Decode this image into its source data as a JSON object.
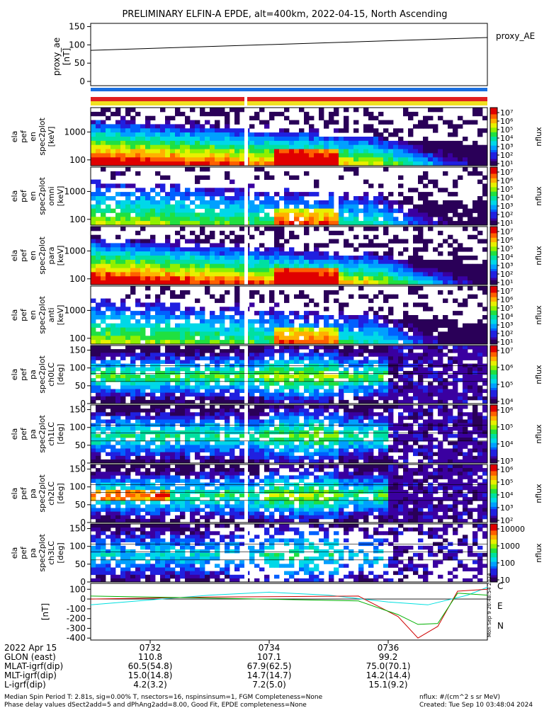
{
  "title": "PRELIMINARY ELFIN-A EPDE, alt=400km, 2022-04-15, North Ascending",
  "colors": {
    "axis": "#000000",
    "bar_blue": "#1a6fe0",
    "bar_red": "#e02020",
    "bar_yellow": "#f0e020",
    "white_gap": "#ffffff",
    "bx_cyan": "#00e0e0",
    "by_red": "#d00000",
    "bz_green": "#00b000"
  },
  "proxy_panel": {
    "ylabel": "proxy_ae\n[nT]",
    "yticks": [
      "150",
      "100",
      "50",
      "0"
    ],
    "legend": "proxy_AE"
  },
  "spec_panels": [
    {
      "ylabel": [
        "ela",
        "pef",
        "en",
        "spec2plot",
        "[keV]"
      ],
      "yticks": [
        "1000",
        "100"
      ],
      "cbar_ticks": [
        "10⁷",
        "10⁶",
        "10⁵",
        "10⁴",
        "10³",
        "10²",
        "10¹"
      ],
      "cbar_label": "nflux"
    },
    {
      "ylabel": [
        "ela",
        "pef",
        "en",
        "spec2plot",
        "omni",
        "[keV]"
      ],
      "yticks": [
        "1000",
        "100"
      ],
      "cbar_ticks": [
        "10⁷",
        "10⁶",
        "10⁵",
        "10⁴",
        "10³",
        "10²",
        "10¹"
      ],
      "cbar_label": "nflux"
    },
    {
      "ylabel": [
        "ela",
        "pef",
        "en",
        "spec2plot",
        "para",
        "[keV]"
      ],
      "yticks": [
        "1000",
        "100"
      ],
      "cbar_ticks": [
        "10⁷",
        "10⁶",
        "10⁵",
        "10⁴",
        "10³",
        "10²",
        "10¹"
      ],
      "cbar_label": "nflux"
    },
    {
      "ylabel": [
        "ela",
        "pef",
        "en",
        "spec2plot",
        "anti",
        "[keV]"
      ],
      "yticks": [
        "1000",
        "100"
      ],
      "cbar_ticks": [
        "10⁷",
        "10⁶",
        "10⁵",
        "10⁴",
        "10³",
        "10²",
        "10¹"
      ],
      "cbar_label": "nflux"
    },
    {
      "ylabel": [
        "ela",
        "pef",
        "pa",
        "spec2plot",
        "ch0LC",
        "[deg]"
      ],
      "yticks": [
        "150",
        "100",
        "50",
        "0"
      ],
      "cbar_ticks": [
        "10⁷",
        "10⁶",
        "10⁵",
        "10⁴"
      ],
      "cbar_label": "nflux"
    },
    {
      "ylabel": [
        "ela",
        "pef",
        "pa",
        "spec2plot",
        "ch1LC",
        "[deg]"
      ],
      "yticks": [
        "150",
        "100",
        "50",
        "0"
      ],
      "cbar_ticks": [
        "10⁶",
        "10⁵",
        "10⁴",
        "10³"
      ],
      "cbar_label": "nflux"
    },
    {
      "ylabel": [
        "ela",
        "pef",
        "pa",
        "spec2plot",
        "ch2LC",
        "[deg]"
      ],
      "yticks": [
        "150",
        "100",
        "50",
        "0"
      ],
      "cbar_ticks": [
        "10⁶",
        "10⁵",
        "10⁴",
        "10³",
        "10²"
      ],
      "cbar_label": "nflux"
    },
    {
      "ylabel": [
        "ela",
        "pef",
        "pa",
        "spec2plot",
        "ch3LC",
        "[deg]"
      ],
      "yticks": [
        "150",
        "100",
        "50",
        "0"
      ],
      "cbar_ticks": [
        "10000",
        "1000",
        "100",
        "10"
      ],
      "cbar_label": "nflux"
    }
  ],
  "mag_panel": {
    "ylabel": "[nT]",
    "yticks": [
      "100",
      "0",
      "-100",
      "-200",
      "-300",
      "-400"
    ],
    "legend": [
      "C",
      "E",
      "N"
    ],
    "stamp": "Mon Sep 9 20:48:54 2024"
  },
  "axis_labels": {
    "rows": [
      "2022 Apr 15",
      "GLON (east)",
      "MLAT-igrf(dip)",
      "MLT-igrf(dip)",
      "L-igrf(dip)"
    ],
    "cols": [
      [
        "0732",
        "110.8",
        "60.5(54.8)",
        "15.0(14.8)",
        "4.2(3.2)"
      ],
      [
        "0734",
        "107.1",
        "67.9(62.5)",
        "14.7(14.7)",
        "7.2(5.0)"
      ],
      [
        "0736",
        "99.2",
        "75.0(70.1)",
        "14.2(14.4)",
        "15.1(9.2)"
      ]
    ]
  },
  "footer": {
    "line1": "Median Spin Period T: 2.81s, sig=0.00% T, nsectors=16, nspinsinsum=1, FGM Completeness=None",
    "line2": "Phase delay values dSect2add=5 and dPhAng2add=8.00, Good Fit, EPDE completeness=None",
    "right1": "nflux: #/(cm^2 s sr MeV)",
    "right2": "Created: Tue Sep 10 03:48:04 2024"
  },
  "chart_data": {
    "type": "line",
    "series": [
      {
        "name": "proxy_AE",
        "x": [
          "07:31:00",
          "07:37:40"
        ],
        "values": [
          85,
          120
        ]
      }
    ],
    "mag_series": [
      {
        "name": "C",
        "x": [
          "07:31:00",
          "07:32:00",
          "07:33:00",
          "07:34:00",
          "07:35:00",
          "07:36:00",
          "07:36:40",
          "07:37:20",
          "07:37:40"
        ],
        "values": [
          -60,
          -10,
          40,
          70,
          40,
          -30,
          -60,
          40,
          120
        ]
      },
      {
        "name": "E",
        "x": [
          "07:31:00",
          "07:33:00",
          "07:35:30",
          "07:36:10",
          "07:36:30",
          "07:36:50",
          "07:37:10",
          "07:37:40"
        ],
        "values": [
          0,
          20,
          30,
          -180,
          -400,
          -280,
          80,
          100
        ]
      },
      {
        "name": "N",
        "x": [
          "07:31:00",
          "07:33:00",
          "07:35:30",
          "07:36:10",
          "07:36:30",
          "07:36:50",
          "07:37:10",
          "07:37:40"
        ],
        "values": [
          30,
          10,
          -20,
          -160,
          -260,
          -250,
          60,
          40
        ]
      }
    ],
    "ylim": [
      0,
      150
    ],
    "mag_ylim": [
      -420,
      160
    ]
  }
}
